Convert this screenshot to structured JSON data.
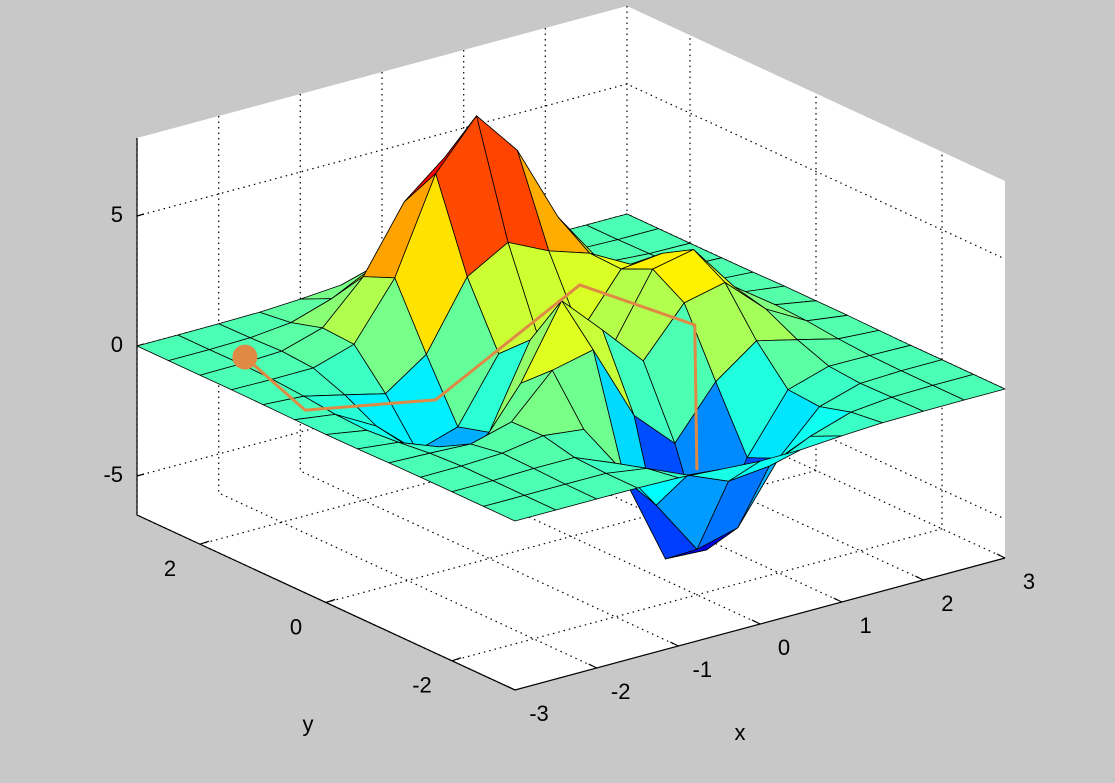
{
  "chart_data": {
    "type": "surface",
    "colormap": "jet",
    "edgecolor": "#000000",
    "x": [
      -3,
      -2.5,
      -2,
      -1.5,
      -1,
      -0.5,
      0,
      0.5,
      1,
      1.5,
      2,
      2.5,
      3
    ],
    "y": [
      -3,
      -2.5,
      -2,
      -1.5,
      -1,
      -0.5,
      0,
      0.5,
      1,
      1.5,
      2,
      2.5,
      3
    ],
    "z": [
      [
        0,
        0,
        0,
        0,
        -0.03,
        -0.14,
        -0.24,
        -0.22,
        -0.11,
        -0.03,
        -0.01,
        0,
        0
      ],
      [
        0,
        0,
        0.01,
        0,
        -0.23,
        -0.91,
        -1.57,
        -1.41,
        -0.69,
        -0.18,
        -0.03,
        0,
        0
      ],
      [
        0,
        0.01,
        0.05,
        0.05,
        -0.59,
        -2.63,
        -4.75,
        -4.34,
        -2.1,
        -0.53,
        -0.06,
        0,
        0
      ],
      [
        0,
        0.01,
        0.08,
        0.33,
        0.15,
        -2.19,
        -5.68,
        -5.76,
        -2.63,
        -0.44,
        0.04,
        0.03,
        0
      ],
      [
        -0.01,
        -0.06,
        -0.13,
        0.3,
        1.86,
        2.22,
        -0.72,
        -2.22,
        -0.27,
        0.88,
        0.5,
        0.11,
        0.01
      ],
      [
        -0.03,
        -0.2,
        -0.8,
        -1.21,
        0.8,
        3.55,
        2.0,
        0.39,
        2.2,
        2.56,
        1.12,
        0.24,
        0.03
      ],
      [
        -0.04,
        -0.3,
        -1.33,
        -2.77,
        -1.65,
        1.48,
        0.98,
        0.37,
        2.94,
        3.27,
        1.41,
        0.3,
        0.03
      ],
      [
        -0.03,
        -0.25,
        -1.12,
        -2.49,
        -2.0,
        0.39,
        0.46,
        0.38,
        2.38,
        2.56,
        1.09,
        0.23,
        0.03
      ],
      [
        -0.01,
        -0.11,
        -0.48,
        -0.86,
        0.23,
        2.79,
        3.69,
        2.94,
        2.43,
        1.58,
        0.58,
        0.11,
        0.01
      ],
      [
        0,
        -0.02,
        -0.01,
        0.48,
        2.61,
        6.2,
        8.0,
        6.25,
        3.25,
        1.19,
        0.29,
        0.05,
        0
      ],
      [
        0,
        0.01,
        0.08,
        0.55,
        2.1,
        4.55,
        5.85,
        4.56,
        2.21,
        0.68,
        0.13,
        0.02,
        0
      ],
      [
        0,
        0,
        0.03,
        0.19,
        0.69,
        1.47,
        1.88,
        1.47,
        0.7,
        0.2,
        0.04,
        0,
        0
      ],
      [
        0,
        0,
        0.01,
        0.03,
        0.11,
        0.23,
        0.3,
        0.23,
        0.11,
        0.03,
        0.01,
        0,
        0
      ]
    ],
    "xlim": [
      -3,
      3
    ],
    "ylim": [
      -3,
      3
    ],
    "zlim": [
      -6.5,
      8
    ],
    "xticks": [
      -3,
      -2,
      -1,
      0,
      1,
      2,
      3
    ],
    "yticks": [
      -2,
      0,
      2
    ],
    "zticks": [
      -5,
      0,
      5
    ],
    "xlabel": "x",
    "ylabel": "y",
    "grid": true,
    "path": {
      "color": "#de8a45",
      "x": [
        -2.35,
        -2.77,
        -1.59,
        1.45,
        1.67,
        0.13
      ],
      "y": [
        2.13,
        0.63,
        0.09,
        1.74,
        0.2,
        -1.83
      ],
      "z": [
        0,
        0,
        0,
        0,
        0,
        -2
      ]
    }
  }
}
